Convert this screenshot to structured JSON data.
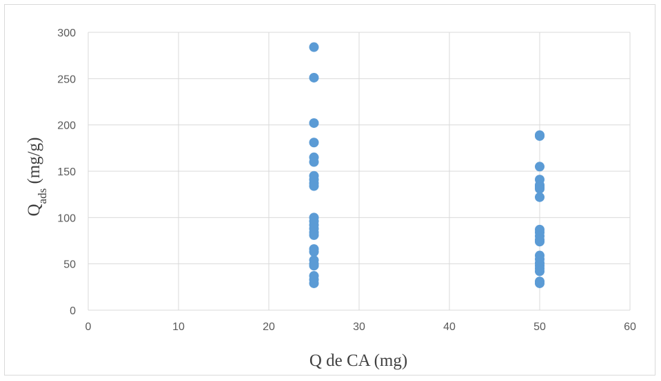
{
  "chart_data": {
    "type": "scatter",
    "title": "",
    "xlabel": "Q de CA (mg)",
    "ylabel_main": "Q",
    "ylabel_sub": "ads",
    "ylabel_unit": " (mg/g)",
    "xlim": [
      0,
      60
    ],
    "ylim": [
      0,
      300
    ],
    "xticks": [
      0,
      10,
      20,
      30,
      40,
      50,
      60
    ],
    "yticks": [
      0,
      50,
      100,
      150,
      200,
      250,
      300
    ],
    "grid": true,
    "legend": "none",
    "marker_color": "#5b9bd5",
    "series": [
      {
        "points": [
          [
            25,
            284
          ],
          [
            25,
            251
          ],
          [
            25,
            202
          ],
          [
            25,
            181
          ],
          [
            25,
            165
          ],
          [
            25,
            160
          ],
          [
            25,
            145
          ],
          [
            25,
            141
          ],
          [
            25,
            137
          ],
          [
            25,
            134
          ],
          [
            25,
            100
          ],
          [
            25,
            96
          ],
          [
            25,
            92
          ],
          [
            25,
            88
          ],
          [
            25,
            84
          ],
          [
            25,
            81
          ],
          [
            25,
            66
          ],
          [
            25,
            63
          ],
          [
            25,
            54
          ],
          [
            25,
            50
          ],
          [
            25,
            48
          ],
          [
            25,
            37
          ],
          [
            25,
            33
          ],
          [
            25,
            29
          ],
          [
            50,
            189
          ],
          [
            50,
            188
          ],
          [
            50,
            155
          ],
          [
            50,
            141
          ],
          [
            50,
            135
          ],
          [
            50,
            133
          ],
          [
            50,
            131
          ],
          [
            50,
            122
          ],
          [
            50,
            87
          ],
          [
            50,
            84
          ],
          [
            50,
            80
          ],
          [
            50,
            76
          ],
          [
            50,
            74
          ],
          [
            50,
            59
          ],
          [
            50,
            55
          ],
          [
            50,
            51
          ],
          [
            50,
            48
          ],
          [
            50,
            45
          ],
          [
            50,
            42
          ],
          [
            50,
            31
          ],
          [
            50,
            29
          ]
        ]
      }
    ]
  }
}
